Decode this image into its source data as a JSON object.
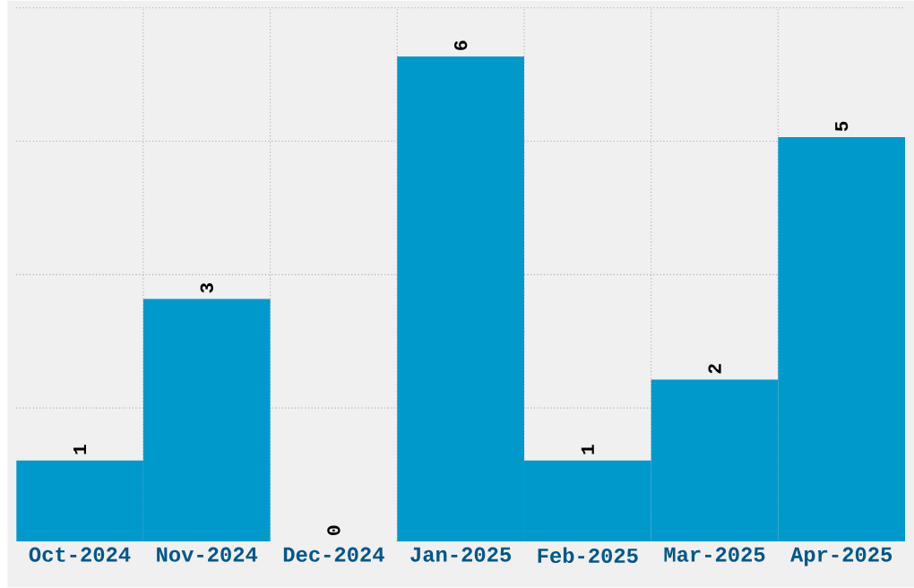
{
  "chart_data": {
    "type": "bar",
    "categories": [
      "Oct-2024",
      "Nov-2024",
      "Dec-2024",
      "Jan-2025",
      "Feb-2025",
      "Mar-2025",
      "Apr-2025"
    ],
    "values": [
      1,
      3,
      0,
      6,
      1,
      2,
      5
    ],
    "color": "#0099cc",
    "ylim": [
      0,
      6.6
    ],
    "yticks": [
      {
        "value": 1.65,
        "label": null
      },
      {
        "value": 3.3,
        "label": null
      },
      {
        "value": 4.95,
        "label": null
      },
      {
        "value": 6.6,
        "label": null
      }
    ],
    "tick_labels": "x",
    "grid": true,
    "data_labels": true
  }
}
